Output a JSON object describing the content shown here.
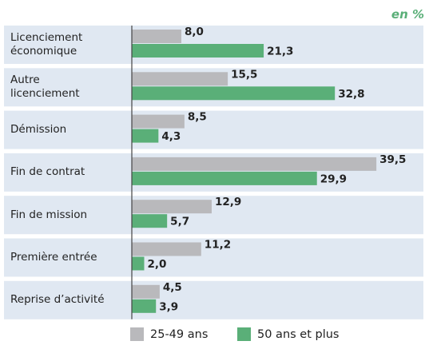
{
  "chart_data": {
    "type": "bar",
    "orientation": "horizontal",
    "unit_label": "en %",
    "categories": [
      "Licenciement\néconomique",
      "Autre\nlicenciement",
      "Démission",
      "Fin de contrat",
      "Fin de mission",
      "Première entrée",
      "Reprise d’activité"
    ],
    "series": [
      {
        "name": "25-49 ans",
        "color": "#b9b9bc",
        "values": [
          8.0,
          15.5,
          8.5,
          39.5,
          12.9,
          11.2,
          4.5
        ],
        "value_labels": [
          "8,0",
          "15,5",
          "8,5",
          "39,5",
          "12,9",
          "11,2",
          "4,5"
        ]
      },
      {
        "name": "50 ans et plus",
        "color": "#5aaf78",
        "values": [
          21.3,
          32.8,
          4.3,
          29.9,
          5.7,
          2.0,
          3.9
        ],
        "value_labels": [
          "21,3",
          "32,8",
          "4,3",
          "29,9",
          "5,7",
          "2,0",
          "3,9"
        ]
      }
    ]
  }
}
